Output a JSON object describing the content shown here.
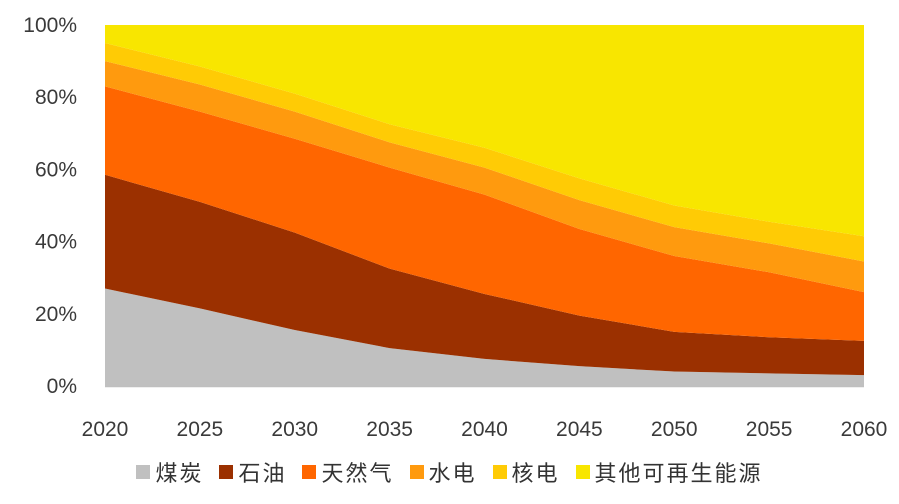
{
  "chart_data": {
    "type": "area",
    "stacked": true,
    "percent": true,
    "x": [
      "2020",
      "2025",
      "2030",
      "2035",
      "2040",
      "2045",
      "2050",
      "2055",
      "2060"
    ],
    "ylim": [
      0,
      100
    ],
    "yticks": [
      "0%",
      "20%",
      "40%",
      "60%",
      "80%",
      "100%"
    ],
    "grid": false,
    "legend_position": "bottom",
    "series": [
      {
        "name": "煤炭",
        "color": "#c0c0c0",
        "values": [
          27,
          21.5,
          15.5,
          10.5,
          7.5,
          5.5,
          4,
          3.5,
          3
        ]
      },
      {
        "name": "石油",
        "color": "#9b3000",
        "values": [
          31.5,
          29.5,
          27,
          22,
          18,
          14,
          11,
          10,
          9.5
        ]
      },
      {
        "name": "天然气",
        "color": "#ff6600",
        "values": [
          24.5,
          25,
          26,
          28,
          27.5,
          24,
          21,
          18,
          13.5
        ]
      },
      {
        "name": "水电",
        "color": "#ff9a0e",
        "values": [
          7,
          7.5,
          7.5,
          7,
          7.5,
          8,
          8,
          8,
          8.5
        ]
      },
      {
        "name": "核电",
        "color": "#ffcb05",
        "values": [
          5,
          5,
          5,
          5,
          5.5,
          6,
          6,
          6,
          7
        ]
      },
      {
        "name": "其他可再生能源",
        "color": "#f8e600",
        "values": [
          5,
          11.5,
          19,
          27.5,
          34,
          42.5,
          50,
          54.5,
          58.5
        ]
      }
    ]
  }
}
